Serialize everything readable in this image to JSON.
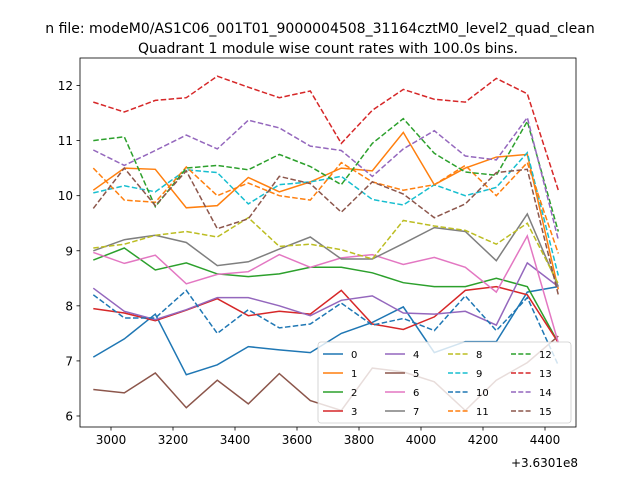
{
  "chart_data": {
    "type": "line",
    "suptitle": "n file: modeM0/AS1C06_001T01_9000004508_31164cztM0_level2_quad_clean",
    "title": "Quadrant 1 module wise count rates with 100.0s bins.",
    "xlabel": "",
    "ylabel": "",
    "x_offset_label": "+3.6301e8",
    "x_tick_labels": [
      "3000",
      "3200",
      "3400",
      "3600",
      "3800",
      "4000",
      "4200",
      "4400"
    ],
    "y_tick_labels": [
      "6",
      "7",
      "8",
      "9",
      "10",
      "11",
      "12"
    ],
    "xlim": [
      2900,
      4500
    ],
    "ylim": [
      5.8,
      12.5
    ],
    "grid": false,
    "legend_position": "lower-right",
    "legend_columns": 4,
    "x": [
      2943,
      3043,
      3143,
      3243,
      3343,
      3443,
      3543,
      3643,
      3743,
      3843,
      3943,
      4043,
      4143,
      4243,
      4343,
      4443
    ],
    "series": [
      {
        "name": "0",
        "color": "#1f77b4",
        "dash": "solid",
        "values": [
          7.07,
          7.4,
          7.85,
          6.75,
          6.93,
          7.26,
          7.2,
          7.15,
          7.5,
          7.7,
          7.98,
          7.15,
          7.35,
          7.35,
          8.25,
          8.35
        ]
      },
      {
        "name": "1",
        "color": "#ff7f0e",
        "dash": "solid",
        "values": [
          10.1,
          10.5,
          10.48,
          9.78,
          9.82,
          10.33,
          10.07,
          10.25,
          10.5,
          10.45,
          11.15,
          10.2,
          10.5,
          10.7,
          10.75,
          8.3
        ]
      },
      {
        "name": "2",
        "color": "#2ca02c",
        "dash": "solid",
        "values": [
          8.83,
          9.05,
          8.65,
          8.78,
          8.58,
          8.53,
          8.58,
          8.7,
          8.7,
          8.6,
          8.42,
          8.35,
          8.35,
          8.5,
          8.35,
          7.33
        ]
      },
      {
        "name": "3",
        "color": "#d62728",
        "dash": "solid",
        "values": [
          7.95,
          7.87,
          7.73,
          7.92,
          8.13,
          7.82,
          7.9,
          7.85,
          8.28,
          7.67,
          7.57,
          7.8,
          8.28,
          8.35,
          8.2,
          7.33
        ]
      },
      {
        "name": "4",
        "color": "#9467bd",
        "dash": "solid",
        "values": [
          8.32,
          7.9,
          7.75,
          7.93,
          8.15,
          8.15,
          8.0,
          7.82,
          8.1,
          8.18,
          7.87,
          7.85,
          7.9,
          7.65,
          8.78,
          8.35
        ]
      },
      {
        "name": "5",
        "color": "#8c564b",
        "dash": "solid",
        "values": [
          6.48,
          6.42,
          6.78,
          6.15,
          6.65,
          6.22,
          6.77,
          6.28,
          6.1,
          6.87,
          6.8,
          6.62,
          6.1,
          6.65,
          6.97,
          7.45
        ]
      },
      {
        "name": "6",
        "color": "#e377c2",
        "dash": "solid",
        "values": [
          8.97,
          8.77,
          8.92,
          8.4,
          8.57,
          8.62,
          8.93,
          8.7,
          8.87,
          8.93,
          8.75,
          8.88,
          8.7,
          8.25,
          9.27,
          7.33
        ]
      },
      {
        "name": "7",
        "color": "#7f7f7f",
        "dash": "solid",
        "values": [
          9.0,
          9.2,
          9.28,
          9.15,
          8.73,
          8.8,
          9.03,
          9.25,
          8.85,
          8.85,
          9.13,
          9.42,
          9.35,
          8.82,
          9.67,
          8.35
        ]
      },
      {
        "name": "8",
        "color": "#bcbd22",
        "dash": "dashed",
        "values": [
          9.05,
          9.12,
          9.28,
          9.35,
          9.25,
          9.6,
          9.08,
          9.12,
          9.02,
          8.85,
          9.55,
          9.45,
          9.37,
          9.12,
          9.5,
          8.4
        ]
      },
      {
        "name": "9",
        "color": "#17becf",
        "dash": "dashed",
        "values": [
          10.05,
          10.18,
          10.07,
          10.47,
          10.42,
          9.85,
          10.2,
          10.25,
          10.35,
          9.93,
          9.83,
          10.2,
          10.0,
          10.15,
          10.78,
          8.55
        ]
      },
      {
        "name": "10",
        "color": "#1f77b4",
        "dash": "dashed",
        "values": [
          8.2,
          7.78,
          7.78,
          8.28,
          7.5,
          7.93,
          7.6,
          7.67,
          8.05,
          7.65,
          7.77,
          7.55,
          8.18,
          7.55,
          8.15,
          6.92
        ]
      },
      {
        "name": "11",
        "color": "#ff7f0e",
        "dash": "dashed",
        "values": [
          10.5,
          9.92,
          9.88,
          10.52,
          10.0,
          10.23,
          10.0,
          9.92,
          10.6,
          10.25,
          10.1,
          10.2,
          10.55,
          10.0,
          10.6,
          8.95
        ]
      },
      {
        "name": "12",
        "color": "#2ca02c",
        "dash": "dashed",
        "values": [
          11.0,
          11.07,
          9.8,
          10.5,
          10.55,
          10.47,
          10.75,
          10.53,
          10.2,
          10.95,
          11.4,
          10.77,
          10.43,
          10.37,
          11.35,
          9.35
        ]
      },
      {
        "name": "13",
        "color": "#d62728",
        "dash": "dashed",
        "values": [
          11.7,
          11.52,
          11.73,
          11.78,
          12.17,
          11.97,
          11.78,
          11.9,
          10.95,
          11.55,
          11.93,
          11.75,
          11.7,
          12.13,
          11.85,
          10.1
        ]
      },
      {
        "name": "14",
        "color": "#9467bd",
        "dash": "dashed",
        "values": [
          10.83,
          10.55,
          10.82,
          11.1,
          10.85,
          11.37,
          11.23,
          10.9,
          10.82,
          10.35,
          10.85,
          11.18,
          10.72,
          10.65,
          11.42,
          9.2
        ]
      },
      {
        "name": "15",
        "color": "#8c564b",
        "dash": "dashed",
        "values": [
          9.77,
          10.5,
          9.82,
          10.45,
          9.4,
          9.58,
          10.35,
          10.22,
          9.7,
          10.25,
          10.03,
          9.6,
          9.85,
          10.42,
          10.48,
          8.2
        ]
      }
    ]
  }
}
